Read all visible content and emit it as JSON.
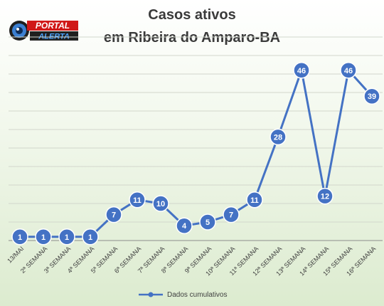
{
  "logo": {
    "word1": "PORTAL",
    "word2": "ALERTA"
  },
  "chart_data": {
    "type": "line",
    "title_lines": [
      "Casos ativos",
      "em Ribeira do Amparo-BA"
    ],
    "categories": [
      "13/MAI",
      "2ª SEMANA",
      "3ª SEMANA",
      "4ª SEMANA",
      "5ª SEMANA",
      "6ª SEMANA",
      "7ª SEMANA",
      "8ª SEMANA",
      "9ª SEMANA",
      "10ª SEMANA",
      "11ª SEMANA",
      "12ª SEMANA",
      "13ª SEMANA",
      "14ª SEMANA",
      "15ª SEMANA",
      "16ª SEMANA"
    ],
    "series": [
      {
        "name": "Dados cumulativos",
        "values": [
          1,
          1,
          1,
          1,
          7,
          11,
          10,
          4,
          5,
          7,
          11,
          28,
          46,
          12,
          46,
          39
        ],
        "color": "#4472C4"
      }
    ],
    "ylim": [
      0,
      55
    ],
    "grid": true,
    "legend_position": "bottom",
    "data_labels": true
  }
}
